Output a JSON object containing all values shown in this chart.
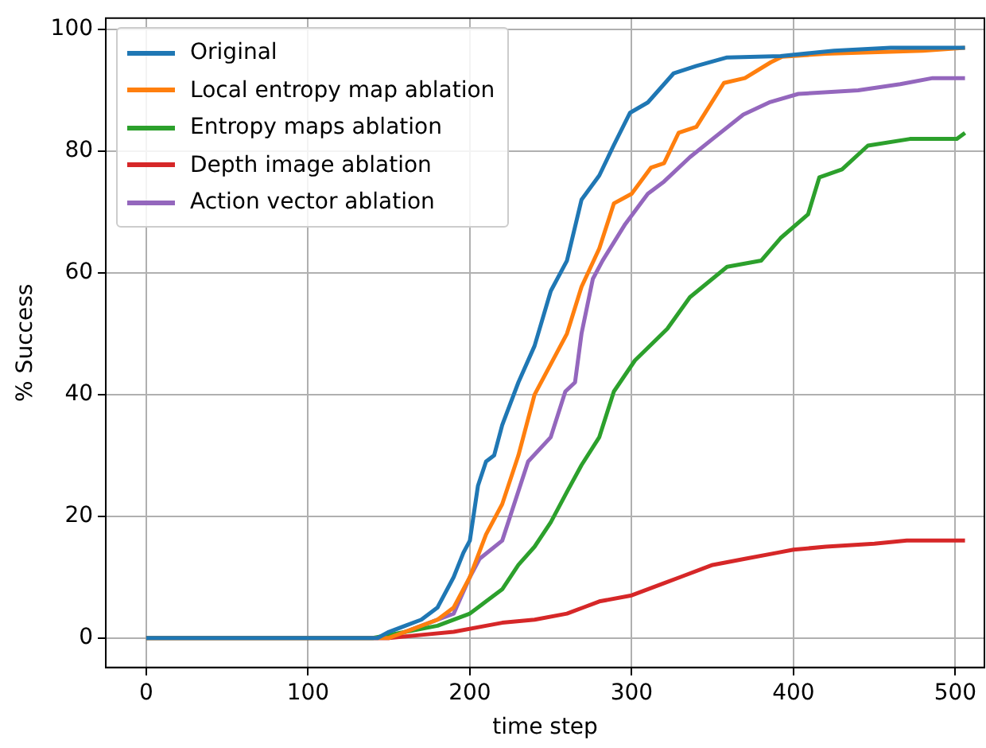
{
  "chart_data": {
    "type": "line",
    "xlabel": "time step",
    "ylabel": "% Success",
    "xlim": [
      -25,
      518
    ],
    "ylim": [
      -4.85,
      101.85
    ],
    "xticks": [
      0,
      100,
      200,
      300,
      400,
      500
    ],
    "yticks": [
      0,
      20,
      40,
      60,
      80,
      100
    ],
    "grid": true,
    "legend": "top left",
    "marker": "none",
    "line_style": "solid",
    "series": [
      {
        "name": "Original",
        "color": "#1f77b4",
        "x": [
          0,
          143,
          150,
          170,
          180,
          190,
          196,
          200,
          205,
          210,
          215,
          220,
          230,
          240,
          250,
          260,
          269,
          280,
          289,
          299,
          310,
          326,
          340,
          359,
          392,
          425,
          460,
          506
        ],
        "values": [
          0,
          0,
          1,
          3,
          5,
          10,
          14,
          16,
          25,
          29,
          30,
          35,
          42,
          48,
          57,
          62,
          72,
          76,
          81,
          86.3,
          88,
          92.8,
          94,
          95.4,
          95.6,
          96.5,
          97,
          97
        ]
      },
      {
        "name": "Local entropy map ablation",
        "color": "#ff7f0e",
        "x": [
          0,
          150,
          160,
          180,
          190,
          200,
          210,
          220,
          230,
          240,
          250,
          260,
          269,
          280,
          289,
          300,
          312,
          320,
          329,
          340,
          357,
          370,
          386,
          393,
          420,
          480,
          506
        ],
        "values": [
          0,
          0,
          1,
          3,
          5,
          10,
          17,
          22,
          30,
          40,
          45,
          50,
          57.7,
          64,
          71.4,
          73,
          77.3,
          78,
          83,
          84,
          91.2,
          92,
          94.6,
          95.5,
          96,
          96.5,
          97
        ]
      },
      {
        "name": "Entropy maps ablation",
        "color": "#2ca02c",
        "x": [
          0,
          140,
          150,
          180,
          200,
          210,
          220,
          230,
          240,
          250,
          260,
          269,
          280,
          289,
          302,
          322,
          336,
          359,
          380,
          392,
          409,
          416,
          430,
          446,
          472,
          501,
          506
        ],
        "values": [
          0,
          0,
          0.5,
          2,
          4,
          6,
          8,
          12,
          15,
          19,
          24,
          28.4,
          33,
          40.5,
          45.6,
          50.8,
          56,
          61,
          62,
          65.7,
          69.6,
          75.7,
          77,
          80.9,
          82,
          82,
          83
        ]
      },
      {
        "name": "Depth image ablation",
        "color": "#d62728",
        "x": [
          0,
          150,
          170,
          190,
          210,
          220,
          240,
          260,
          270,
          280,
          300,
          320,
          330,
          350,
          370,
          390,
          400,
          420,
          450,
          470,
          506
        ],
        "values": [
          0,
          0,
          0.5,
          1,
          2,
          2.5,
          3,
          4,
          5,
          6,
          7,
          9,
          10,
          12,
          13,
          14,
          14.5,
          15,
          15.5,
          16,
          16
        ]
      },
      {
        "name": "Action vector ablation",
        "color": "#9467bd",
        "x": [
          0,
          150,
          170,
          190,
          200,
          206,
          220,
          236,
          250,
          259,
          265,
          269,
          276,
          282,
          296,
          310,
          320,
          336,
          350,
          369,
          385,
          403,
          440,
          466,
          486,
          506
        ],
        "values": [
          0,
          0,
          2,
          4,
          10,
          13,
          16,
          29,
          33,
          40.5,
          42,
          50,
          59,
          62,
          68,
          73,
          75,
          79,
          82,
          86,
          88,
          89.4,
          90,
          91,
          92,
          92
        ]
      }
    ]
  }
}
